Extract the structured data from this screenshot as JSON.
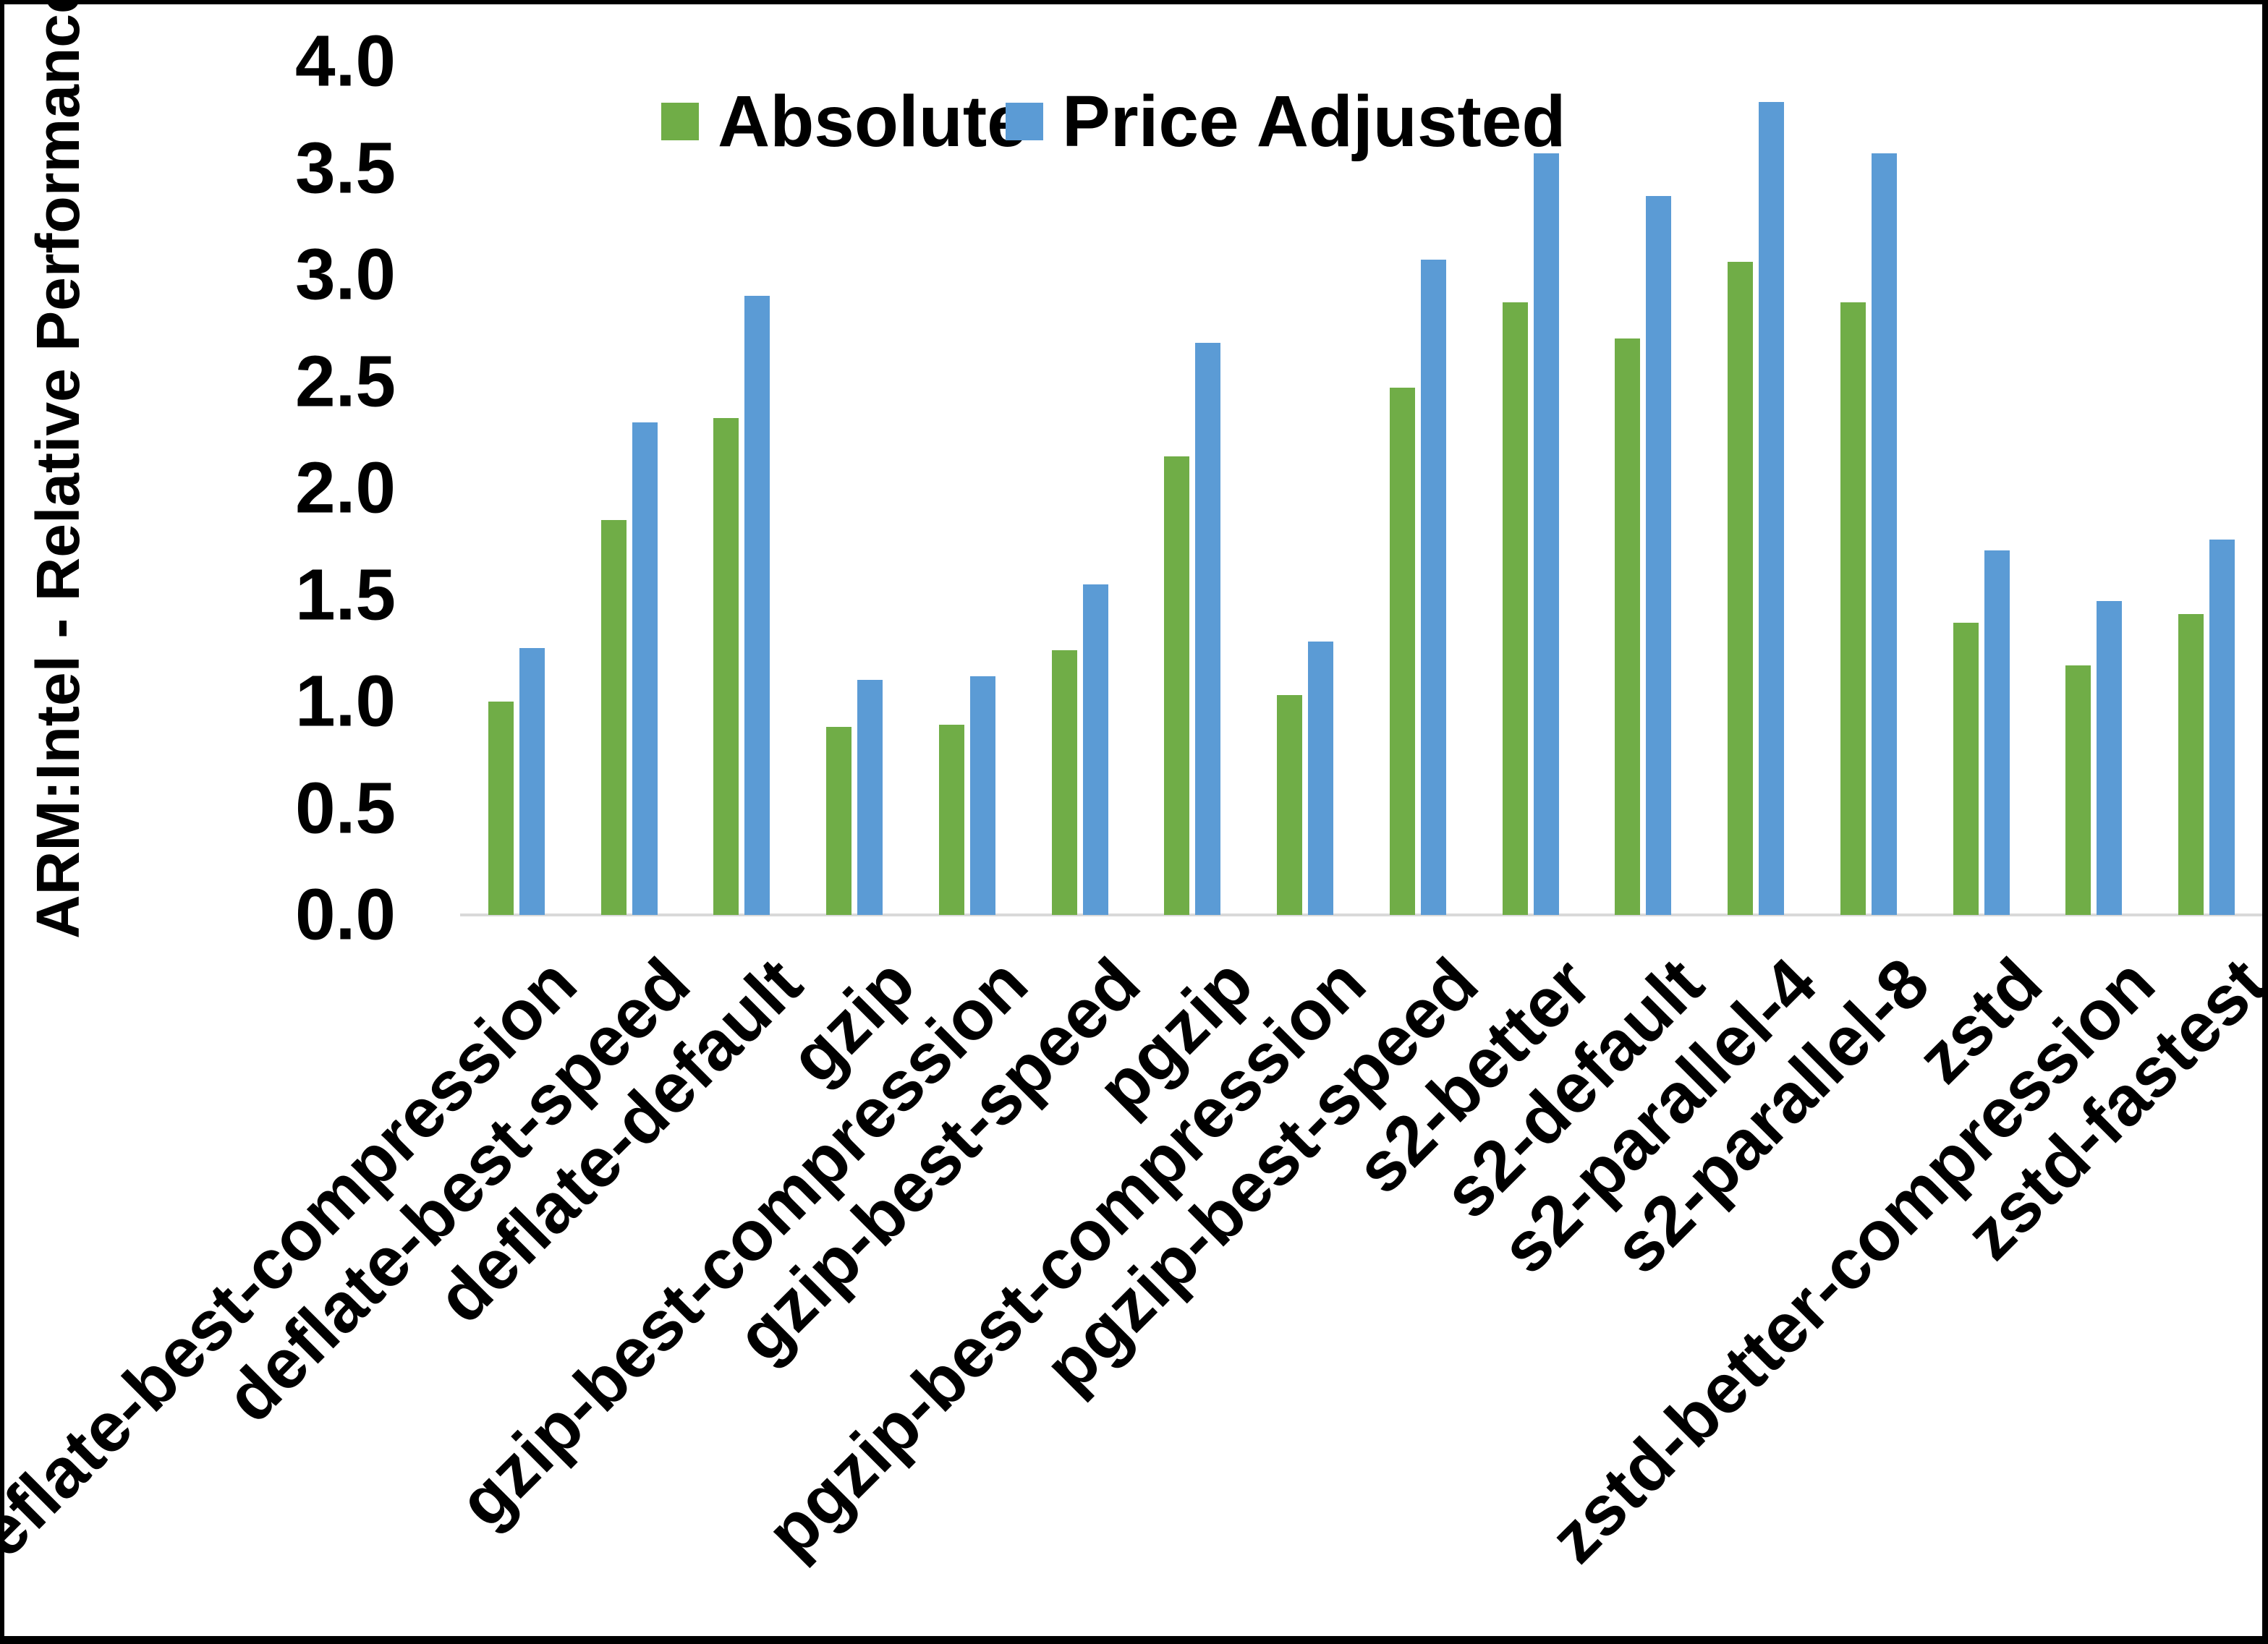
{
  "chart_data": {
    "type": "bar",
    "title": "",
    "ylabel": "ARM:Intel - Relative Performance",
    "xlabel": "",
    "ylim": [
      0.0,
      4.0
    ],
    "ytick_step": 0.5,
    "yticks": [
      "0.0",
      "0.5",
      "1.0",
      "1.5",
      "2.0",
      "2.5",
      "3.0",
      "3.5",
      "4.0"
    ],
    "grid": false,
    "legend_position": "top-center",
    "categories": [
      "deflate-best-compression",
      "deflate-best-speed",
      "deflate-default",
      "gzip",
      "gzip-best-compression",
      "gzip-best-speed",
      "pgzip",
      "pgzip-best-compression",
      "pgzip-best-speed",
      "s2-better",
      "s2-default",
      "s2-parallel-4",
      "s2-parallel-8",
      "zstd",
      "zstd-better-compression",
      "zstd-fastest"
    ],
    "series": [
      {
        "name": "Absolute",
        "color": "#70AD47",
        "values": [
          1.0,
          1.85,
          2.33,
          0.88,
          0.89,
          1.24,
          2.15,
          1.03,
          2.47,
          2.87,
          2.7,
          3.06,
          2.87,
          1.37,
          1.17,
          1.41
        ]
      },
      {
        "name": "Price Adjusted",
        "color": "#5B9BD5",
        "values": [
          1.25,
          2.31,
          2.9,
          1.1,
          1.12,
          1.55,
          2.68,
          1.28,
          3.07,
          3.57,
          3.37,
          3.81,
          3.57,
          1.71,
          1.47,
          1.76
        ]
      }
    ]
  },
  "colors": {
    "axis_line": "#D9D9D9",
    "background": "#FFFFFF",
    "text": "#000000",
    "frame": "#000000"
  }
}
